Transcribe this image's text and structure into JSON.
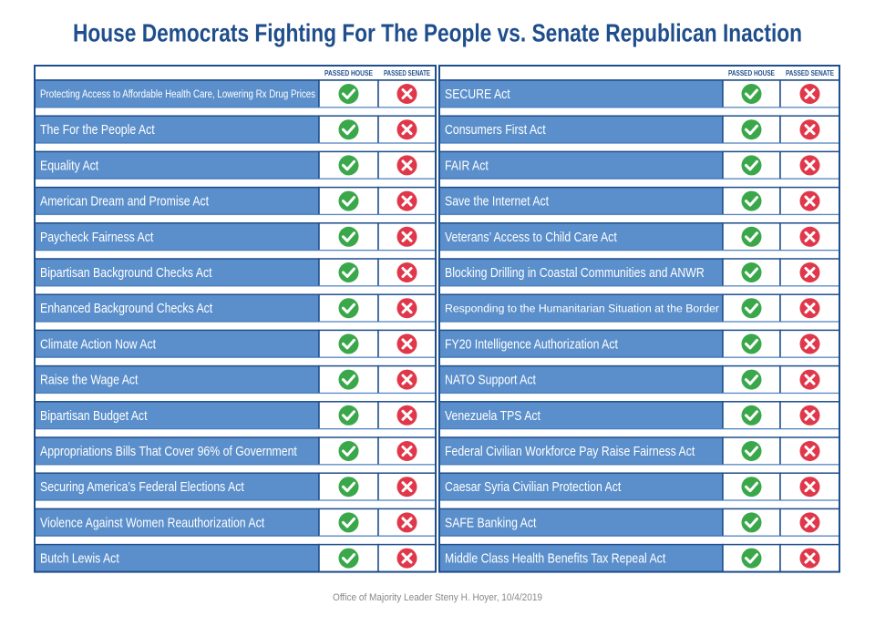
{
  "header": {
    "title": "House Democrats Fighting For The People vs. Senate Republican Inaction"
  },
  "table": {
    "columns": [
      "PASSED HOUSE",
      "PASSED SENATE"
    ],
    "left": [
      "Protecting Access to Affordable Health Care, Lowering Rx Drug Prices",
      "The For the People Act",
      "Equality Act",
      "American Dream and Promise Act",
      "Paycheck Fairness Act",
      "Bipartisan Background Checks Act",
      "Enhanced Background Checks Act",
      "Climate Action Now Act",
      "Raise the Wage Act",
      "Bipartisan Budget Act",
      "Appropriations Bills That Cover 96% of Government",
      "Securing America’s Federal Elections Act",
      "Violence Against Women Reauthorization Act",
      "Butch Lewis Act"
    ],
    "right": [
      "SECURE Act",
      "Consumers First Act",
      "FAIR Act",
      "Save the Internet Act",
      "Veterans’ Access to Child Care Act",
      "Blocking Drilling in Coastal Communities and ANWR",
      "Responding to the Humanitarian Situation at the Border",
      "FY20 Intelligence Authorization Act",
      "NATO Support Act",
      "Venezuela TPS Act",
      "Federal Civilian Workforce Pay Raise Fairness Act",
      "Caesar Syria Civilian Protection Act",
      "SAFE Banking Act",
      "Middle Class Health Benefits Tax Repeal Act"
    ]
  },
  "footer": "Office of Majority Leader Steny H. Hoyer, 10/4/2019"
}
